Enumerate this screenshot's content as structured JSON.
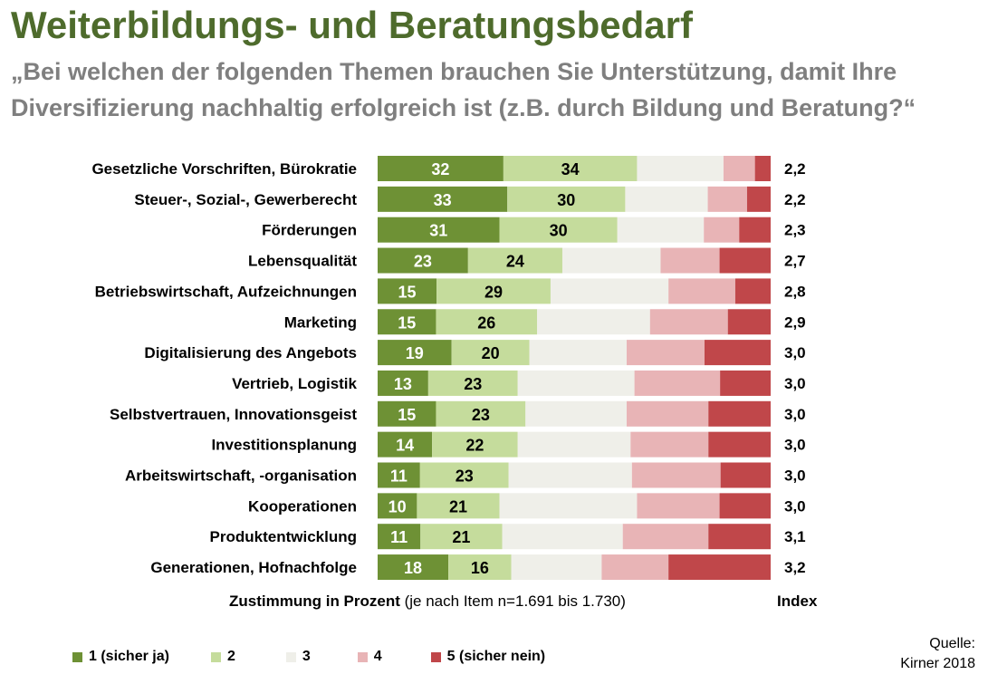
{
  "title": "Weiterbildungs- und Beratungsbedarf",
  "subtitle_line1": "„Bei welchen der folgenden Themen brauchen Sie Unterstützung, damit Ihre",
  "subtitle_line2": "Diversifizierung nachhaltig erfolgreich ist (z.B. durch Bildung und Beratung?“",
  "xlabel_bold": "Zustimmung in Prozent",
  "xlabel_note": " (je nach Item n=1.691 bis 1.730)",
  "index_header": "Index",
  "source_line1": "Quelle:",
  "source_line2": "Kirner 2018",
  "colors": {
    "s1": "#6e9135",
    "s2": "#c5dc9c",
    "s3": "#efefe9",
    "s4": "#e8b4b6",
    "s5": "#c0474a"
  },
  "legend": [
    {
      "label": "1 (sicher ja)",
      "color": "#6e9135"
    },
    {
      "label": "2",
      "color": "#c5dc9c"
    },
    {
      "label": "3",
      "color": "#efefe9"
    },
    {
      "label": "4",
      "color": "#e8b4b6"
    },
    {
      "label": "5 (sicher nein)",
      "color": "#c0474a"
    }
  ],
  "chart_data": {
    "type": "bar",
    "orientation": "horizontal",
    "stacked": true,
    "percent": true,
    "categories": [
      "Gesetzliche Vorschriften, Bürokratie",
      "Steuer-, Sozial-, Gewerberecht",
      "Förderungen",
      "Lebensqualität",
      "Betriebswirtschaft, Aufzeichnungen",
      "Marketing",
      "Digitalisierung des Angebots",
      "Vertrieb, Logistik",
      "Selbstvertrauen, Innovationsgeist",
      "Investitionsplanung",
      "Arbeitswirtschaft, -organisation",
      "Kooperationen",
      "Produktentwicklung",
      "Generationen, Hofnachfolge"
    ],
    "series": [
      {
        "name": "1 (sicher ja)",
        "values": [
          32,
          33,
          31,
          23,
          15,
          15,
          19,
          13,
          15,
          14,
          11,
          10,
          11,
          18
        ],
        "labeled": true
      },
      {
        "name": "2",
        "values": [
          34,
          30,
          30,
          24,
          29,
          26,
          20,
          23,
          23,
          22,
          23,
          21,
          21,
          16
        ],
        "labeled": true
      },
      {
        "name": "3",
        "values": [
          22,
          21,
          22,
          25,
          30,
          29,
          25,
          30,
          26,
          29,
          32,
          35,
          31,
          23
        ],
        "labeled": false
      },
      {
        "name": "4",
        "values": [
          8,
          10,
          9,
          15,
          17,
          20,
          20,
          22,
          21,
          20,
          23,
          21,
          22,
          17
        ],
        "labeled": false
      },
      {
        "name": "5 (sicher nein)",
        "values": [
          4,
          6,
          8,
          13,
          9,
          11,
          17,
          13,
          16,
          16,
          13,
          13,
          16,
          26
        ],
        "labeled": false
      }
    ],
    "index_values": [
      "2,2",
      "2,2",
      "2,3",
      "2,7",
      "2,8",
      "2,9",
      "3,0",
      "3,0",
      "3,0",
      "3,0",
      "3,0",
      "3,0",
      "3,1",
      "3,2"
    ],
    "xlim": [
      0,
      100
    ],
    "grid": false,
    "legend_position": "bottom"
  }
}
